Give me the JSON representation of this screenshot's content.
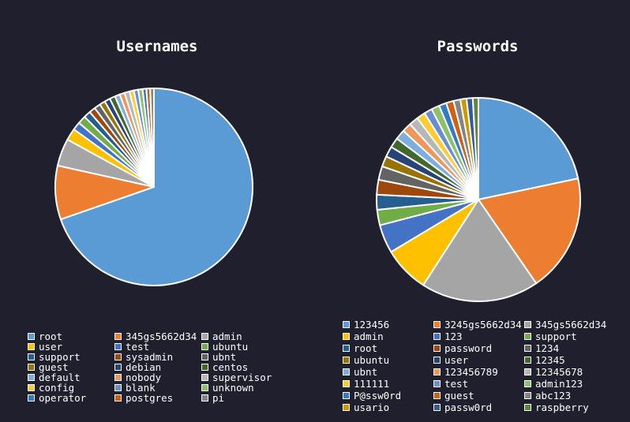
{
  "chart_data": [
    {
      "type": "pie",
      "title": "Usernames",
      "labels": [
        "root",
        "345gs5662d34",
        "admin",
        "user",
        "test",
        "ubuntu",
        "support",
        "sysadmin",
        "ubnt",
        "guest",
        "debian",
        "centos",
        "default",
        "nobody",
        "supervisor",
        "config",
        "blank",
        "unknown",
        "operator",
        "postgres",
        "pi"
      ],
      "values": [
        68.0,
        8.6,
        4.4,
        1.9,
        1.3,
        1.3,
        1.1,
        1.0,
        1.0,
        0.9,
        0.9,
        0.9,
        0.8,
        0.8,
        0.8,
        0.7,
        0.7,
        0.7,
        0.6,
        0.6,
        0.6
      ],
      "colors": [
        "#5b9bd5",
        "#ed7d31",
        "#a5a5a5",
        "#ffc000",
        "#4472c4",
        "#70ad47",
        "#255e91",
        "#9e480e",
        "#636363",
        "#997300",
        "#264478",
        "#43682b",
        "#7cafdd",
        "#f1975a",
        "#b7b7b7",
        "#ffcd33",
        "#698ed0",
        "#8cc168",
        "#327dc2",
        "#d26012",
        "#848484"
      ],
      "legend_position": "bottom"
    },
    {
      "type": "pie",
      "title": "Passwords",
      "labels": [
        "123456",
        "3245gs5662d34",
        "345gs5662d34",
        "admin",
        "123",
        "support",
        "root",
        "password",
        "1234",
        "ubuntu",
        "user",
        "12345",
        "ubnt",
        "123456789",
        "12345678",
        "111111",
        "test",
        "admin123",
        "P@ssw0rd",
        "guest",
        "abc123",
        "usario",
        "passw0rd",
        "raspberry"
      ],
      "values": [
        22.0,
        19.0,
        19.0,
        7.4,
        4.6,
        2.5,
        2.4,
        2.4,
        2.2,
        1.7,
        1.7,
        1.6,
        1.6,
        1.5,
        1.5,
        1.4,
        1.3,
        1.3,
        1.2,
        1.2,
        1.1,
        1.0,
        1.0,
        0.9
      ],
      "colors": [
        "#5b9bd5",
        "#ed7d31",
        "#a5a5a5",
        "#ffc000",
        "#4472c4",
        "#70ad47",
        "#255e91",
        "#9e480e",
        "#636363",
        "#997300",
        "#264478",
        "#43682b",
        "#7cafdd",
        "#f1975a",
        "#b7b7b7",
        "#ffcd33",
        "#698ed0",
        "#8cc168",
        "#327dc2",
        "#d26012",
        "#848484",
        "#cc9a00",
        "#335aa1",
        "#5a8a39"
      ],
      "legend_position": "bottom"
    }
  ]
}
